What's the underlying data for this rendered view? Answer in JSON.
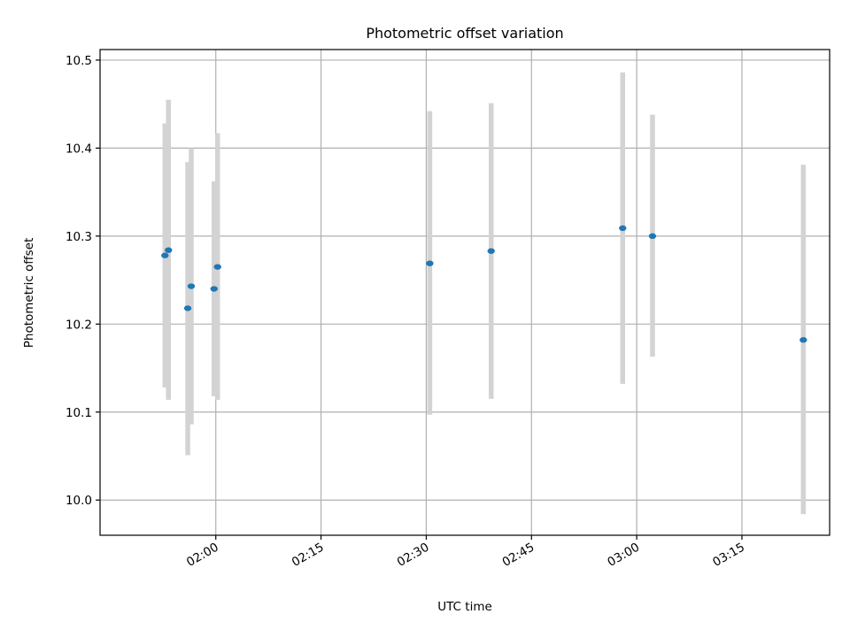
{
  "chart_data": {
    "type": "scatter",
    "title": "Photometric offset variation",
    "xlabel": "UTC time",
    "ylabel": "Photometric offset",
    "xlim": [
      "01:43:30",
      "03:27:30"
    ],
    "ylim": [
      9.96,
      10.512
    ],
    "xticks": [
      "02:00",
      "02:15",
      "02:30",
      "02:45",
      "03:00",
      "03:15"
    ],
    "yticks": [
      10.0,
      10.1,
      10.2,
      10.3,
      10.4,
      10.5
    ],
    "grid": true,
    "points": [
      {
        "x": "01:52:45",
        "y": 10.278,
        "err_low": 10.128,
        "err_high": 10.428
      },
      {
        "x": "01:53:15",
        "y": 10.284,
        "err_low": 10.114,
        "err_high": 10.455
      },
      {
        "x": "01:56:00",
        "y": 10.218,
        "err_low": 10.051,
        "err_high": 10.384
      },
      {
        "x": "01:56:30",
        "y": 10.243,
        "err_low": 10.086,
        "err_high": 10.4
      },
      {
        "x": "01:59:45",
        "y": 10.24,
        "err_low": 10.118,
        "err_high": 10.362
      },
      {
        "x": "02:00:15",
        "y": 10.265,
        "err_low": 10.114,
        "err_high": 10.417
      },
      {
        "x": "02:30:30",
        "y": 10.269,
        "err_low": 10.097,
        "err_high": 10.442
      },
      {
        "x": "02:39:15",
        "y": 10.283,
        "err_low": 10.115,
        "err_high": 10.451
      },
      {
        "x": "02:58:00",
        "y": 10.309,
        "err_low": 10.132,
        "err_high": 10.486
      },
      {
        "x": "03:02:15",
        "y": 10.3,
        "err_low": 10.163,
        "err_high": 10.438
      },
      {
        "x": "03:23:45",
        "y": 10.182,
        "err_low": 9.984,
        "err_high": 10.381
      }
    ],
    "colors": {
      "points": "#1f77b4",
      "errorbars": "#d3d3d3",
      "grid": "#b0b0b0"
    }
  }
}
